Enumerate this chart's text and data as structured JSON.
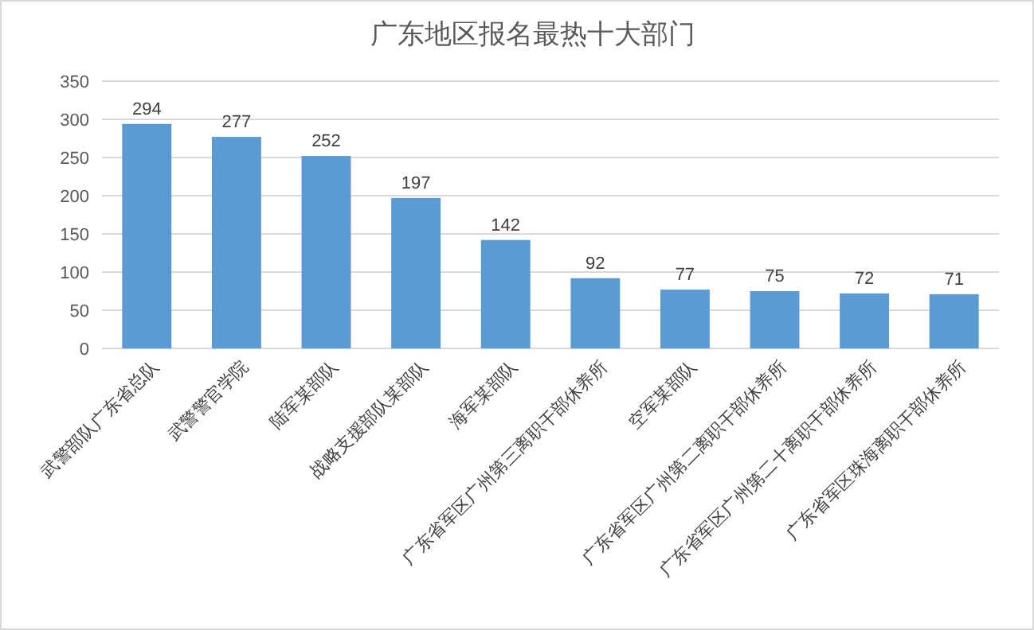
{
  "chart_data": {
    "type": "bar",
    "title": "广东地区报名最热十大部门",
    "categories": [
      "武警部队广东省总队",
      "武警警官学院",
      "陆军某部队",
      "战略支援部队某部队",
      "海军某部队",
      "广东省军区广州第三离职干部休养所",
      "空军某部队",
      "广东省军区广州第二离职干部休养所",
      "广东省军区广州第二十离职干部休养所",
      "广东省军区珠海离职干部休养所"
    ],
    "values": [
      294,
      277,
      252,
      197,
      142,
      92,
      77,
      75,
      72,
      71
    ],
    "color": "#5b9bd5",
    "ylim": [
      0,
      350
    ],
    "yticks": [
      0,
      50,
      100,
      150,
      200,
      250,
      300,
      350
    ],
    "grid": "y",
    "data_labels": true
  }
}
